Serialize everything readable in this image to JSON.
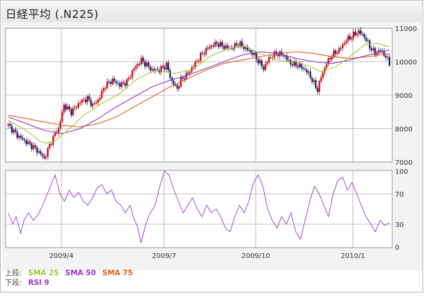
{
  "title": "日経平均 (.N225)",
  "legend": {
    "upper_label": "上段:",
    "lower_label": "下段:",
    "upper_items": [
      {
        "name": "SMA 25",
        "color": "#99cc33"
      },
      {
        "name": "SMA 50",
        "color": "#9933cc"
      },
      {
        "name": "SMA 75",
        "color": "#e65c1a"
      }
    ],
    "lower_items": [
      {
        "name": "RSI 9",
        "color": "#9933cc"
      }
    ]
  },
  "colors": {
    "candle_up": "#cc1111",
    "candle_down": "#1a2a7a",
    "sma25": "#99cc33",
    "sma50": "#9933cc",
    "sma75": "#e65c1a",
    "rsi": "#9933cc",
    "grid": "#888888"
  },
  "chart_data": [
    {
      "type": "candlestick",
      "title": "",
      "y_ticks": [
        7000,
        8000,
        9000,
        10000,
        11000
      ],
      "ylim": [
        7000,
        11000
      ],
      "x_tick_labels": [
        "2009/4",
        "2009/7",
        "2009/10",
        "2010/1"
      ],
      "grid": true,
      "close_series": [
        [
          0,
          8100
        ],
        [
          5,
          7800
        ],
        [
          10,
          7600
        ],
        [
          14,
          7450
        ],
        [
          18,
          7250
        ],
        [
          20,
          7100
        ],
        [
          23,
          7500
        ],
        [
          26,
          7850
        ],
        [
          28,
          8000
        ],
        [
          31,
          8700
        ],
        [
          35,
          8500
        ],
        [
          40,
          8800
        ],
        [
          44,
          8900
        ],
        [
          47,
          8700
        ],
        [
          50,
          8850
        ],
        [
          54,
          9300
        ],
        [
          58,
          9450
        ],
        [
          62,
          9300
        ],
        [
          66,
          9400
        ],
        [
          70,
          9800
        ],
        [
          74,
          10050
        ],
        [
          77,
          9900
        ],
        [
          80,
          9750
        ],
        [
          84,
          9750
        ],
        [
          88,
          9900
        ],
        [
          91,
          9400
        ],
        [
          94,
          9200
        ],
        [
          96,
          9450
        ],
        [
          100,
          9650
        ],
        [
          104,
          9950
        ],
        [
          108,
          10250
        ],
        [
          112,
          10450
        ],
        [
          116,
          10550
        ],
        [
          120,
          10450
        ],
        [
          124,
          10400
        ],
        [
          128,
          10550
        ],
        [
          132,
          10400
        ],
        [
          136,
          10250
        ],
        [
          140,
          9950
        ],
        [
          142,
          9800
        ],
        [
          145,
          10100
        ],
        [
          149,
          10250
        ],
        [
          153,
          10200
        ],
        [
          157,
          9950
        ],
        [
          161,
          9900
        ],
        [
          164,
          9800
        ],
        [
          167,
          9650
        ],
        [
          170,
          9350
        ],
        [
          172,
          9150
        ],
        [
          174,
          9550
        ],
        [
          177,
          9950
        ],
        [
          180,
          10200
        ],
        [
          184,
          10350
        ],
        [
          188,
          10650
        ],
        [
          192,
          10800
        ],
        [
          195,
          10900
        ],
        [
          198,
          10750
        ],
        [
          201,
          10450
        ],
        [
          204,
          10250
        ],
        [
          207,
          10350
        ],
        [
          210,
          10150
        ],
        [
          212,
          9950
        ]
      ],
      "sma25": [
        [
          0,
          8250
        ],
        [
          10,
          7950
        ],
        [
          18,
          7600
        ],
        [
          24,
          7550
        ],
        [
          32,
          7900
        ],
        [
          42,
          8400
        ],
        [
          52,
          8750
        ],
        [
          62,
          9050
        ],
        [
          72,
          9500
        ],
        [
          82,
          9750
        ],
        [
          92,
          9650
        ],
        [
          102,
          9750
        ],
        [
          112,
          10150
        ],
        [
          122,
          10400
        ],
        [
          132,
          10450
        ],
        [
          140,
          10250
        ],
        [
          150,
          10050
        ],
        [
          160,
          10000
        ],
        [
          168,
          9850
        ],
        [
          174,
          9700
        ],
        [
          182,
          9850
        ],
        [
          190,
          10150
        ],
        [
          198,
          10500
        ],
        [
          205,
          10550
        ],
        [
          212,
          10450
        ]
      ],
      "sma50": [
        [
          0,
          8350
        ],
        [
          10,
          8150
        ],
        [
          20,
          7950
        ],
        [
          30,
          7850
        ],
        [
          40,
          8000
        ],
        [
          50,
          8300
        ],
        [
          60,
          8650
        ],
        [
          70,
          8950
        ],
        [
          80,
          9250
        ],
        [
          90,
          9450
        ],
        [
          100,
          9600
        ],
        [
          110,
          9800
        ],
        [
          120,
          10000
        ],
        [
          130,
          10200
        ],
        [
          140,
          10300
        ],
        [
          150,
          10250
        ],
        [
          160,
          10100
        ],
        [
          170,
          10000
        ],
        [
          180,
          9950
        ],
        [
          190,
          10050
        ],
        [
          200,
          10200
        ],
        [
          212,
          10350
        ]
      ],
      "sma75": [
        [
          0,
          8400
        ],
        [
          10,
          8300
        ],
        [
          20,
          8200
        ],
        [
          30,
          8100
        ],
        [
          40,
          8050
        ],
        [
          50,
          8150
        ],
        [
          60,
          8350
        ],
        [
          70,
          8650
        ],
        [
          80,
          8950
        ],
        [
          90,
          9250
        ],
        [
          100,
          9500
        ],
        [
          110,
          9750
        ],
        [
          120,
          9950
        ],
        [
          130,
          10050
        ],
        [
          140,
          10150
        ],
        [
          150,
          10250
        ],
        [
          160,
          10300
        ],
        [
          170,
          10250
        ],
        [
          180,
          10150
        ],
        [
          190,
          10100
        ],
        [
          200,
          10150
        ],
        [
          212,
          10250
        ]
      ]
    },
    {
      "type": "line",
      "title": "",
      "name": "RSI 9",
      "y_ticks": [
        0,
        30,
        70,
        100
      ],
      "ylim": [
        0,
        100
      ],
      "x_tick_labels": [
        "2009/4",
        "2009/7",
        "2009/10",
        "2010/1"
      ],
      "grid": true,
      "values": [
        [
          0,
          45
        ],
        [
          3,
          30
        ],
        [
          5,
          40
        ],
        [
          8,
          18
        ],
        [
          10,
          35
        ],
        [
          13,
          45
        ],
        [
          16,
          35
        ],
        [
          19,
          42
        ],
        [
          22,
          55
        ],
        [
          25,
          70
        ],
        [
          28,
          85
        ],
        [
          30,
          95
        ],
        [
          33,
          70
        ],
        [
          36,
          60
        ],
        [
          39,
          75
        ],
        [
          42,
          65
        ],
        [
          45,
          72
        ],
        [
          48,
          60
        ],
        [
          51,
          55
        ],
        [
          54,
          65
        ],
        [
          57,
          78
        ],
        [
          60,
          82
        ],
        [
          63,
          70
        ],
        [
          66,
          75
        ],
        [
          69,
          60
        ],
        [
          72,
          55
        ],
        [
          75,
          45
        ],
        [
          78,
          55
        ],
        [
          80,
          40
        ],
        [
          83,
          25
        ],
        [
          85,
          5
        ],
        [
          88,
          30
        ],
        [
          91,
          45
        ],
        [
          94,
          55
        ],
        [
          97,
          80
        ],
        [
          100,
          100
        ],
        [
          103,
          95
        ],
        [
          106,
          75
        ],
        [
          109,
          60
        ],
        [
          112,
          45
        ],
        [
          115,
          55
        ],
        [
          118,
          65
        ],
        [
          121,
          50
        ],
        [
          124,
          40
        ],
        [
          127,
          55
        ],
        [
          130,
          45
        ],
        [
          133,
          50
        ],
        [
          136,
          40
        ],
        [
          139,
          25
        ],
        [
          142,
          20
        ],
        [
          145,
          40
        ],
        [
          148,
          55
        ],
        [
          151,
          45
        ],
        [
          154,
          60
        ],
        [
          157,
          85
        ],
        [
          160,
          95
        ],
        [
          163,
          80
        ],
        [
          166,
          50
        ],
        [
          169,
          35
        ],
        [
          172,
          25
        ],
        [
          175,
          40
        ],
        [
          178,
          30
        ],
        [
          181,
          45
        ],
        [
          184,
          20
        ],
        [
          187,
          10
        ],
        [
          190,
          35
        ],
        [
          193,
          60
        ],
        [
          196,
          80
        ],
        [
          199,
          70
        ],
        [
          202,
          55
        ],
        [
          205,
          40
        ],
        [
          208,
          70
        ],
        [
          211,
          88
        ],
        [
          214,
          92
        ],
        [
          217,
          75
        ],
        [
          220,
          85
        ],
        [
          223,
          70
        ],
        [
          226,
          55
        ],
        [
          229,
          40
        ],
        [
          232,
          30
        ],
        [
          235,
          20
        ],
        [
          238,
          35
        ],
        [
          241,
          28
        ],
        [
          244,
          32
        ]
      ]
    }
  ]
}
